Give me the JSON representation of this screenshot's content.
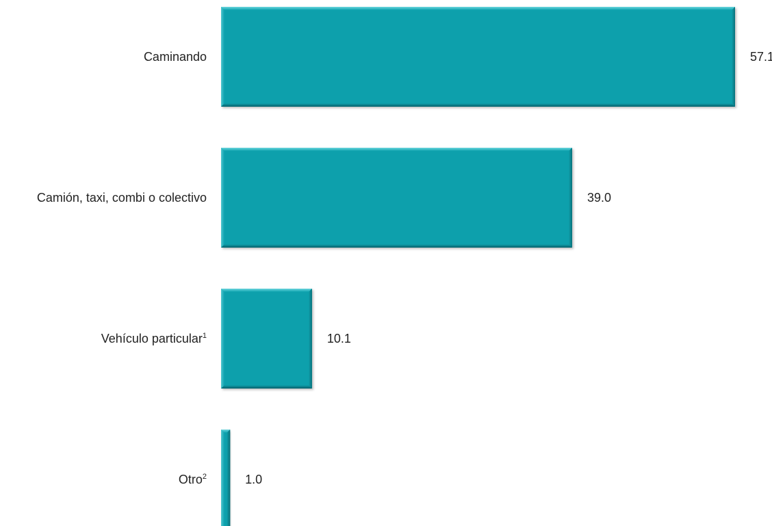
{
  "chart_data": {
    "type": "bar",
    "orientation": "horizontal",
    "categories": [
      {
        "label": "Caminando",
        "sup": ""
      },
      {
        "label": "Camión, taxi, combi o colectivo",
        "sup": ""
      },
      {
        "label": "Vehículo particular",
        "sup": "1"
      },
      {
        "label": "Otro",
        "sup": "2"
      }
    ],
    "values": [
      57.1,
      39.0,
      10.1,
      1.0
    ],
    "value_labels": [
      "57.1",
      "39.0",
      "10.1",
      "1.0"
    ],
    "title": "",
    "xlabel": "",
    "ylabel": "",
    "xlim": [
      0,
      60
    ],
    "grid": false,
    "legend": "none",
    "bar_color": "#0aa0ac",
    "bar_edge_light": "#5fd0d8",
    "bar_edge_dark": "#066f78"
  }
}
